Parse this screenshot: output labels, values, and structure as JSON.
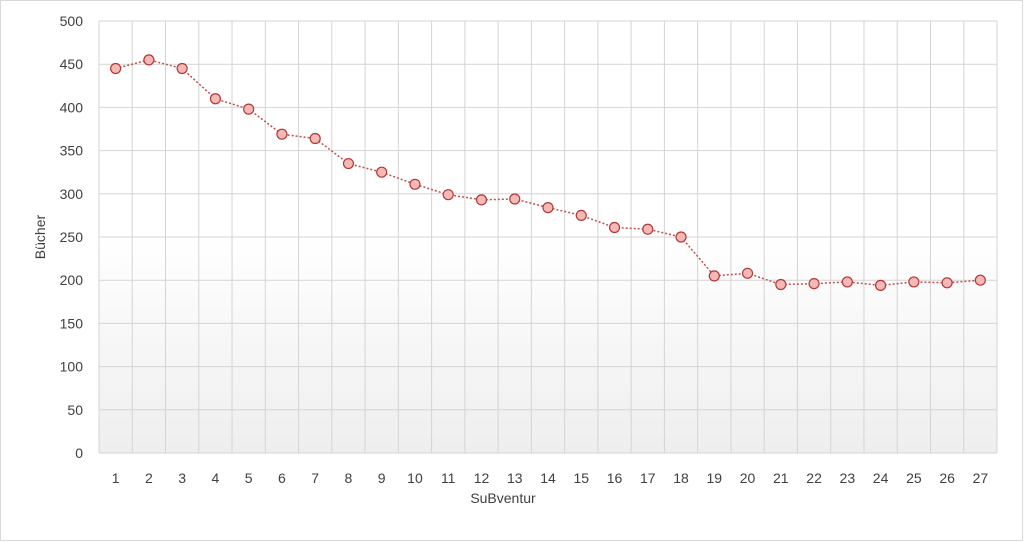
{
  "chart_data": {
    "type": "line",
    "title": "",
    "xlabel": "SuBventur",
    "ylabel": "Bücher",
    "x": [
      1,
      2,
      3,
      4,
      5,
      6,
      7,
      8,
      9,
      10,
      11,
      12,
      13,
      14,
      15,
      16,
      17,
      18,
      19,
      20,
      21,
      22,
      23,
      24,
      25,
      26,
      27
    ],
    "series": [
      {
        "values": [
          445,
          455,
          445,
          410,
          398,
          369,
          364,
          335,
          325,
          311,
          299,
          293,
          294,
          284,
          275,
          261,
          259,
          250,
          205,
          208,
          195,
          196,
          198,
          194,
          198,
          197,
          200
        ]
      }
    ],
    "ylim": [
      0,
      500
    ],
    "yticks": [
      0,
      50,
      100,
      150,
      200,
      250,
      300,
      350,
      400,
      450,
      500
    ],
    "grid": true,
    "legend": "none",
    "colors": {
      "line": "#c0504d",
      "marker_fill": "#f4b8b6",
      "marker_stroke": "#b03a37",
      "grid": "#d4d4d4",
      "plot_top": "#ffffff",
      "plot_bottom": "#eeeeee"
    }
  }
}
